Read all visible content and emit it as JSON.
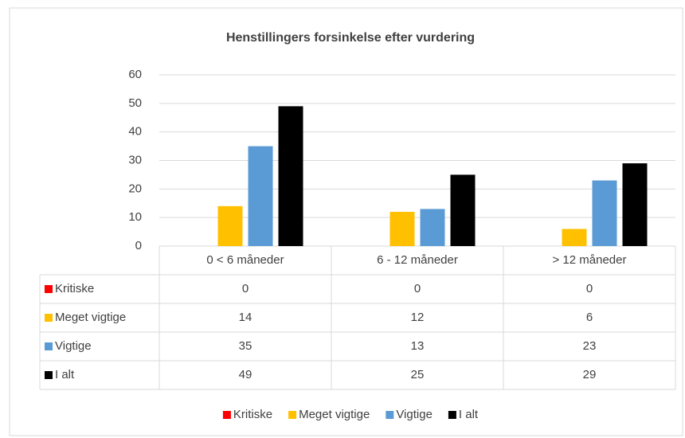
{
  "chart_data": {
    "type": "bar",
    "title": "Henstillingers forsinkelse efter vurdering",
    "title_color": "#4bacc6",
    "categories": [
      "0 < 6 måneder",
      "6 - 12 måneder",
      "> 12 måneder"
    ],
    "series": [
      {
        "name": "Kritiske",
        "color": "#ff0000",
        "values": [
          0,
          0,
          0
        ]
      },
      {
        "name": "Meget vigtige",
        "color": "#ffc000",
        "values": [
          14,
          12,
          6
        ]
      },
      {
        "name": "Vigtige",
        "color": "#5b9bd5",
        "values": [
          35,
          13,
          23
        ]
      },
      {
        "name": "I alt",
        "color": "#000000",
        "values": [
          49,
          25,
          29
        ]
      }
    ],
    "ylim": [
      0,
      60
    ],
    "yticks": [
      0,
      10,
      20,
      30,
      40,
      50,
      60
    ],
    "grid": true,
    "data_table": true,
    "legend": "bottom"
  }
}
